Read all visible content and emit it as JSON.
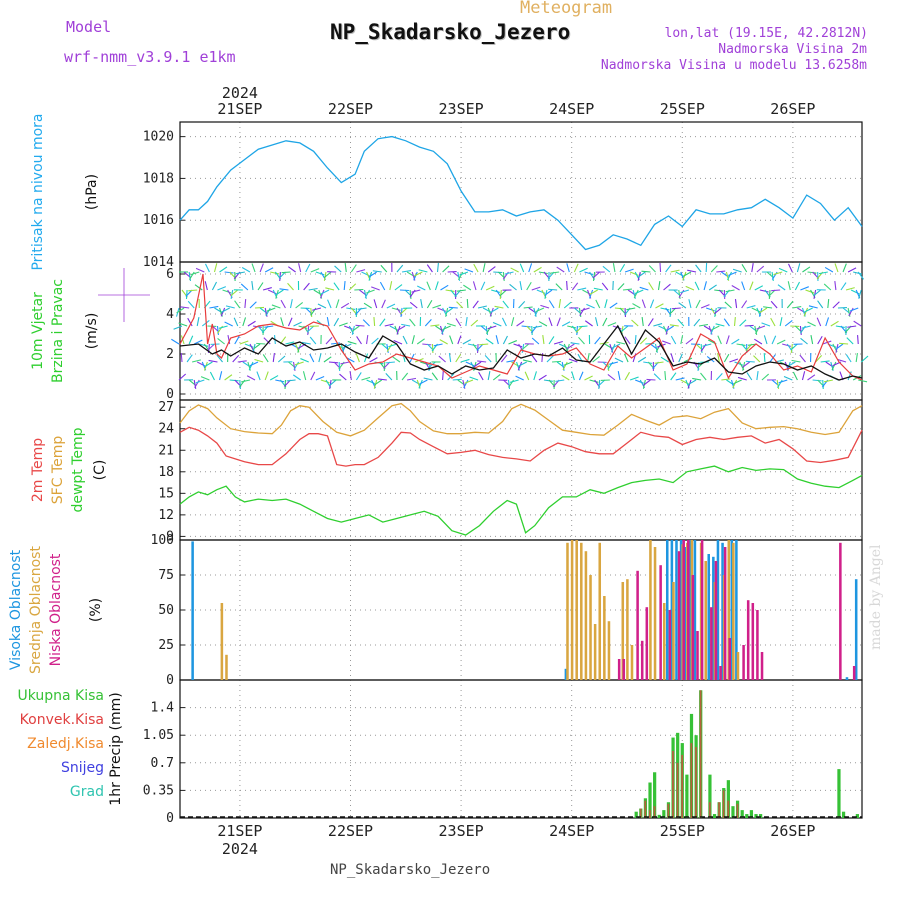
{
  "header": {
    "model_label": "Model",
    "model_name": "wrf-nmm_v3.9.1  e1km",
    "meteogram_label": "Meteogram",
    "station": "NP_Skadarsko_Jezero",
    "lonlat": "lon,lat (19.15E, 42.2812N)",
    "elevation": "Nadmorska Visina 2m",
    "model_elevation": "Nadmorska Visina u modelu 13.6258m",
    "footer_station": "NP_Skadarsko_Jezero",
    "watermark": "made by Angel",
    "year": "2024"
  },
  "colors": {
    "pressure": "#1ea5e6",
    "wind_speed": "#111111",
    "gust": "#e83c3c",
    "t2m": "#e84848",
    "sfc": "#dca33a",
    "dewpt": "#2fcf2f",
    "high_cloud": "#1e96e0",
    "mid_cloud": "#d9a640",
    "low_cloud": "#d0208a",
    "total_precip": "#36c136",
    "conv_precip": "#e04040",
    "frozen_precip": "#f08a2e",
    "snow": "#4040e0",
    "hail": "#2fc4b0",
    "title_purple": "#a040d8",
    "meteogram_title": "#e0b060",
    "pressure_label": "#22aaee"
  },
  "chart_data": [
    {
      "type": "line",
      "panel": "pressure",
      "title": "",
      "xlabel": "",
      "ylabel_main": "Pritisak na nivou mora",
      "ylabel_unit": "(hPa)",
      "x_ticks": [
        "21SEP",
        "22SEP",
        "23SEP",
        "24SEP",
        "25SEP",
        "26SEP"
      ],
      "ylim": [
        1014,
        1020.7
      ],
      "yticks": [
        "1014",
        "1016",
        "1018",
        "1020"
      ],
      "series": [
        {
          "color": "#1ea5e6",
          "x_hours": [
            0,
            2,
            4,
            6,
            8,
            11,
            14,
            17,
            20,
            23,
            26,
            29,
            32,
            35,
            38,
            40,
            43,
            46,
            49,
            52,
            55,
            58,
            61,
            64,
            67,
            70,
            73,
            76,
            79,
            82,
            85,
            88,
            91,
            94,
            97,
            100,
            103,
            106,
            109,
            112,
            115,
            118,
            121,
            124,
            127,
            130,
            133,
            136,
            139,
            142,
            145,
            148
          ],
          "values": [
            1016.0,
            1016.5,
            1016.5,
            1016.9,
            1017.6,
            1018.4,
            1018.9,
            1019.4,
            1019.6,
            1019.8,
            1019.7,
            1019.3,
            1018.5,
            1017.8,
            1018.2,
            1019.3,
            1019.9,
            1020.0,
            1019.8,
            1019.5,
            1019.3,
            1018.7,
            1017.4,
            1016.4,
            1016.4,
            1016.5,
            1016.2,
            1016.4,
            1016.5,
            1016.0,
            1015.3,
            1014.6,
            1014.8,
            1015.3,
            1015.1,
            1014.8,
            1015.8,
            1016.2,
            1015.7,
            1016.5,
            1016.3,
            1016.3,
            1016.5,
            1016.6,
            1017.0,
            1016.6,
            1016.1,
            1017.2,
            1016.8,
            1016.0,
            1016.6,
            1015.7
          ]
        }
      ]
    },
    {
      "type": "line",
      "panel": "wind",
      "title": "",
      "xlabel": "",
      "ylabel_main": "10m Vjetar Brzina i Pravac",
      "ylabel_unit": "(m/s)",
      "ylim": [
        -0.3,
        6.6
      ],
      "yticks": [
        "0",
        "2",
        "4",
        "6"
      ],
      "series": [
        {
          "color": "#111111",
          "x_hours": [
            0,
            4,
            7,
            9,
            11,
            14,
            17,
            20,
            23,
            26,
            29,
            32,
            35,
            38,
            41,
            44,
            47,
            50,
            53,
            56,
            59,
            62,
            65,
            68,
            71,
            74,
            77,
            80,
            83,
            86,
            89,
            92,
            95,
            98,
            101,
            104,
            107,
            110,
            113,
            116,
            119,
            122,
            125,
            128,
            131,
            134,
            137,
            140,
            143,
            146,
            148
          ],
          "values": [
            2.4,
            2.5,
            2.0,
            2.2,
            1.9,
            2.3,
            2.0,
            2.8,
            2.4,
            2.6,
            2.2,
            2.3,
            2.5,
            2.1,
            1.8,
            2.9,
            2.5,
            1.5,
            1.2,
            1.4,
            1.0,
            1.4,
            1.2,
            1.3,
            2.2,
            1.8,
            2.0,
            1.9,
            2.3,
            1.7,
            1.6,
            2.5,
            3.4,
            2.0,
            3.2,
            2.6,
            1.4,
            1.6,
            1.5,
            1.8,
            1.1,
            1.0,
            1.4,
            1.6,
            1.5,
            1.2,
            1.4,
            1.0,
            0.7,
            0.9,
            0.8
          ]
        },
        {
          "color": "#e83c3c",
          "x_hours": [
            0,
            3,
            5,
            6,
            7,
            8,
            9,
            11,
            14,
            17,
            20,
            23,
            26,
            29,
            32,
            35,
            38,
            41,
            44,
            47,
            50,
            53,
            56,
            59,
            62,
            65,
            68,
            71,
            74,
            77,
            80,
            83,
            86,
            89,
            92,
            95,
            98,
            101,
            104,
            107,
            110,
            113,
            116,
            119,
            122,
            125,
            128,
            131,
            134,
            137,
            140,
            143,
            146,
            148
          ],
          "values": [
            2.5,
            3.8,
            6.0,
            2.5,
            3.5,
            2.0,
            1.8,
            2.8,
            3.0,
            3.4,
            3.5,
            3.3,
            3.2,
            3.6,
            3.4,
            2.2,
            1.2,
            1.5,
            1.6,
            2.0,
            1.8,
            1.6,
            1.4,
            0.8,
            1.1,
            1.4,
            1.2,
            1.0,
            2.2,
            2.0,
            1.9,
            2.0,
            2.3,
            1.5,
            1.2,
            2.4,
            1.8,
            2.3,
            2.8,
            1.2,
            1.5,
            3.0,
            2.6,
            0.8,
            1.9,
            2.5,
            2.0,
            1.2,
            1.4,
            1.1,
            2.8,
            1.6,
            0.9,
            0.7
          ]
        }
      ]
    },
    {
      "type": "line",
      "panel": "temperature",
      "title": "",
      "xlabel": "",
      "ylabel_lines": [
        "2m Temp",
        "SFC Temp",
        "dewpt Temp"
      ],
      "ylabel_unit": "(C)",
      "ylim": [
        8.5,
        28.0
      ],
      "yticks": [
        "9",
        "12",
        "15",
        "18",
        "21",
        "24",
        "27"
      ],
      "series": [
        {
          "color": "#dca33a",
          "x_hours": [
            0,
            2,
            4,
            6,
            8,
            11,
            14,
            17,
            20,
            22,
            24,
            26,
            28,
            31,
            34,
            37,
            40,
            43,
            46,
            48,
            50,
            52,
            55,
            58,
            61,
            64,
            67,
            70,
            72,
            74,
            77,
            80,
            83,
            86,
            89,
            92,
            95,
            98,
            101,
            104,
            107,
            110,
            113,
            116,
            119,
            122,
            125,
            128,
            131,
            134,
            137,
            140,
            143,
            146,
            148
          ],
          "values": [
            24.8,
            26.5,
            27.3,
            26.8,
            25.5,
            24.0,
            23.6,
            23.4,
            23.3,
            24.5,
            26.5,
            27.2,
            27.0,
            25.0,
            23.5,
            23.0,
            23.8,
            25.5,
            27.2,
            27.5,
            26.5,
            25.0,
            23.7,
            23.3,
            23.3,
            23.5,
            23.4,
            25.0,
            26.8,
            27.4,
            26.6,
            25.2,
            23.8,
            23.5,
            23.2,
            23.1,
            24.5,
            26.0,
            25.2,
            24.5,
            25.6,
            25.8,
            25.4,
            26.3,
            26.8,
            24.8,
            24.0,
            24.2,
            24.3,
            24.0,
            23.5,
            23.2,
            23.5,
            26.5,
            27.2
          ]
        },
        {
          "color": "#e84848",
          "x_hours": [
            0,
            2,
            4,
            6,
            8,
            10,
            12,
            14,
            17,
            20,
            23,
            26,
            28,
            30,
            32,
            34,
            36,
            38,
            40,
            43,
            46,
            48,
            50,
            52,
            55,
            58,
            61,
            64,
            67,
            70,
            73,
            76,
            79,
            82,
            85,
            88,
            91,
            94,
            97,
            100,
            103,
            106,
            109,
            112,
            115,
            118,
            121,
            124,
            127,
            130,
            133,
            136,
            139,
            142,
            145,
            148
          ],
          "values": [
            23.5,
            24.2,
            23.8,
            23.0,
            22.0,
            20.2,
            19.8,
            19.4,
            19.0,
            19.0,
            20.5,
            22.5,
            23.3,
            23.3,
            23.0,
            19.0,
            18.8,
            19.0,
            19.0,
            20.0,
            22.0,
            23.5,
            23.4,
            22.5,
            21.5,
            20.5,
            20.7,
            21.0,
            20.4,
            20.0,
            19.8,
            19.5,
            21.0,
            22.0,
            21.5,
            20.8,
            20.5,
            20.5,
            22.0,
            23.5,
            23.0,
            22.8,
            21.8,
            22.5,
            22.8,
            22.5,
            22.8,
            23.0,
            22.0,
            22.5,
            21.2,
            19.5,
            19.3,
            19.6,
            20.0,
            23.8
          ]
        },
        {
          "color": "#2fcf2f",
          "x_hours": [
            0,
            2,
            4,
            6,
            8,
            10,
            12,
            14,
            17,
            20,
            23,
            26,
            29,
            32,
            35,
            38,
            41,
            44,
            47,
            50,
            53,
            56,
            59,
            62,
            65,
            68,
            71,
            73,
            75,
            77,
            80,
            83,
            86,
            89,
            92,
            95,
            98,
            101,
            104,
            107,
            110,
            113,
            116,
            119,
            122,
            125,
            128,
            131,
            134,
            137,
            140,
            143,
            146,
            148
          ],
          "values": [
            13.5,
            14.5,
            15.2,
            14.8,
            15.5,
            16.0,
            14.5,
            13.8,
            14.2,
            14.0,
            14.2,
            13.5,
            12.5,
            11.5,
            11.0,
            11.5,
            12.0,
            11.0,
            11.5,
            12.0,
            12.5,
            11.8,
            9.8,
            9.2,
            10.5,
            12.5,
            14.0,
            13.5,
            9.5,
            10.5,
            13.0,
            14.5,
            14.5,
            15.5,
            15.0,
            15.8,
            16.5,
            16.8,
            17.0,
            16.5,
            18.0,
            18.4,
            18.8,
            18.0,
            18.6,
            18.2,
            18.4,
            18.3,
            17.0,
            16.4,
            16.0,
            15.8,
            16.8,
            17.5
          ]
        }
      ]
    },
    {
      "type": "bar",
      "panel": "clouds",
      "title": "",
      "xlabel": "",
      "ylabel_lines": [
        "Visoka Oblacnost",
        "Srednja Oblacnost",
        "Niska Oblacnost"
      ],
      "ylabel_unit": "(%)",
      "ylim": [
        0,
        100
      ],
      "yticks": [
        "0",
        "25",
        "50",
        "75",
        "100"
      ],
      "series": [
        {
          "name": "Visoka Oblacnost",
          "color": "#1e96e0",
          "x_hours": [
            3,
            84,
            106,
            107,
            108,
            109,
            110,
            111,
            112,
            115,
            116,
            117,
            118,
            120,
            121,
            145,
            147
          ],
          "values": [
            99,
            8,
            100,
            100,
            100,
            100,
            95,
            100,
            100,
            90,
            88,
            100,
            98,
            100,
            100,
            2,
            72
          ]
        },
        {
          "name": "Srednja Oblacnost",
          "color": "#d9a640",
          "x_hours": [
            9,
            10,
            84,
            85,
            86,
            87,
            88,
            89,
            90,
            91,
            92,
            93,
            96,
            97,
            98,
            102,
            103,
            105,
            107,
            109,
            110,
            111,
            113,
            114,
            116,
            118,
            119,
            120,
            121
          ],
          "values": [
            55,
            18,
            98,
            100,
            100,
            98,
            92,
            75,
            40,
            98,
            60,
            42,
            70,
            72,
            25,
            100,
            95,
            55,
            70,
            97,
            98,
            100,
            98,
            85,
            70,
            75,
            100,
            98,
            20
          ]
        },
        {
          "name": "Niska Oblacnost",
          "color": "#d0208a",
          "x_hours": [
            95,
            96,
            99,
            100,
            101,
            104,
            106,
            108,
            109,
            110,
            111,
            112,
            113,
            115,
            116,
            117,
            118,
            119,
            122,
            123,
            124,
            125,
            126,
            143,
            146
          ],
          "values": [
            15,
            15,
            78,
            28,
            52,
            82,
            50,
            92,
            100,
            100,
            75,
            35,
            100,
            52,
            85,
            10,
            95,
            30,
            25,
            57,
            55,
            50,
            20,
            98,
            10
          ]
        }
      ]
    },
    {
      "type": "bar",
      "panel": "precipitation",
      "title": "",
      "xlabel": "",
      "ylabel_unit": "1hr Precip (mm)",
      "legend": [
        "Ukupna Kisa",
        "Konvek.Kisa",
        "Zaledj.Kisa",
        "Snijeg",
        "Grad"
      ],
      "ylim": [
        0,
        1.75
      ],
      "yticks": [
        "0",
        "0.35",
        "0.7",
        "1.05",
        "1.4"
      ],
      "series": [
        {
          "name": "Ukupna Kisa",
          "color": "#36c136",
          "x_hours": [
            99,
            100,
            101,
            102,
            103,
            104,
            105,
            106,
            107,
            108,
            109,
            110,
            111,
            112,
            113,
            115,
            116,
            117,
            118,
            119,
            120,
            121,
            122,
            123,
            124,
            125,
            126,
            143,
            144,
            147
          ],
          "values": [
            0.08,
            0.12,
            0.25,
            0.45,
            0.58,
            0.04,
            0.1,
            0.2,
            1.02,
            1.08,
            0.95,
            0.55,
            1.32,
            1.05,
            1.62,
            0.55,
            0.05,
            0.2,
            0.38,
            0.48,
            0.15,
            0.22,
            0.1,
            0.05,
            0.1,
            0.05,
            0.05,
            0.62,
            0.08,
            0.05
          ]
        },
        {
          "name": "Konvek.Kisa",
          "color": "#e04040",
          "x_hours": [
            100,
            101,
            102,
            103,
            106,
            107,
            108,
            109,
            111,
            112,
            113,
            115,
            117,
            118,
            119,
            121
          ],
          "values": [
            0.12,
            0.22,
            0.1,
            0.15,
            0.18,
            0.85,
            0.7,
            0.8,
            0.95,
            0.9,
            1.62,
            0.2,
            0.2,
            0.35,
            0.22,
            0.18
          ]
        }
      ]
    }
  ]
}
